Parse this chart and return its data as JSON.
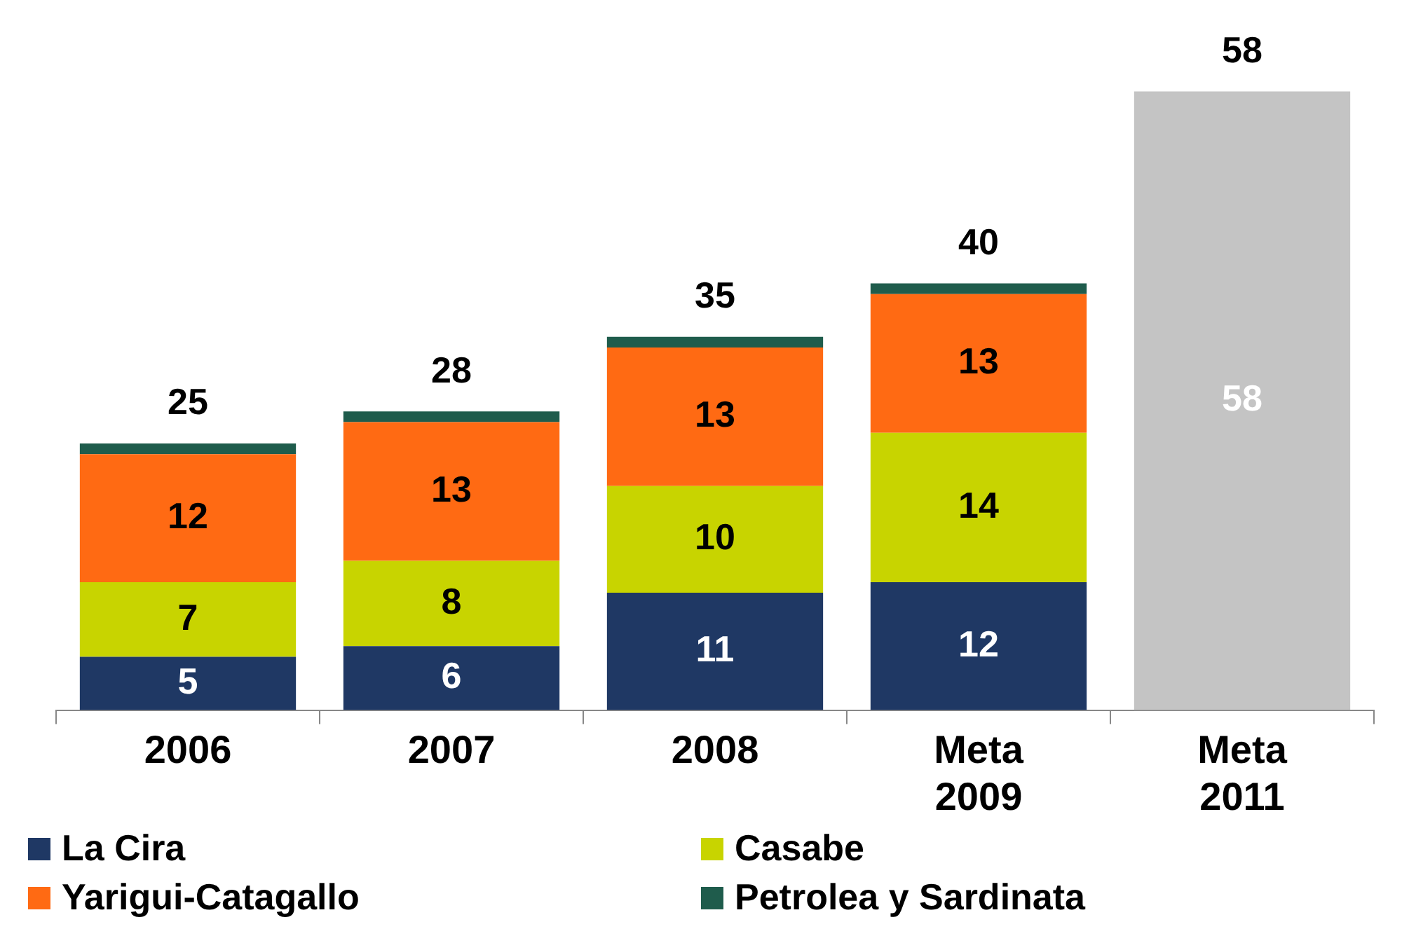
{
  "chart_data": {
    "type": "bar",
    "stacked": true,
    "categories": [
      "2006",
      "2007",
      "2008",
      "Meta 2009",
      "Meta 2011"
    ],
    "series": [
      {
        "name": "La Cira",
        "color": "#1f3864",
        "values": [
          5,
          6,
          11,
          12,
          null
        ],
        "value_labels": [
          "5",
          "6",
          "11",
          "12",
          null
        ]
      },
      {
        "name": "Casabe",
        "color": "#c8d400",
        "values": [
          7,
          8,
          10,
          14,
          null
        ],
        "value_labels": [
          "7",
          "8",
          "10",
          "14",
          null
        ]
      },
      {
        "name": "Yarigui-Catagallo",
        "color": "#ff6a13",
        "values": [
          12,
          13,
          13,
          13,
          null
        ],
        "value_labels": [
          "12",
          "13",
          "13",
          "13",
          null
        ]
      },
      {
        "name": "Petrolea y Sardinata",
        "color": "#1f5c4c",
        "values": [
          1,
          1,
          1,
          1,
          null
        ]
      },
      {
        "color": "#c4c4c4",
        "values": [
          null,
          null,
          null,
          null,
          58
        ],
        "value_labels": [
          null,
          null,
          null,
          null,
          "58"
        ]
      }
    ],
    "totals": [
      "25",
      "28",
      "35",
      "40",
      "58"
    ],
    "legend": "bottom",
    "grid": false
  }
}
